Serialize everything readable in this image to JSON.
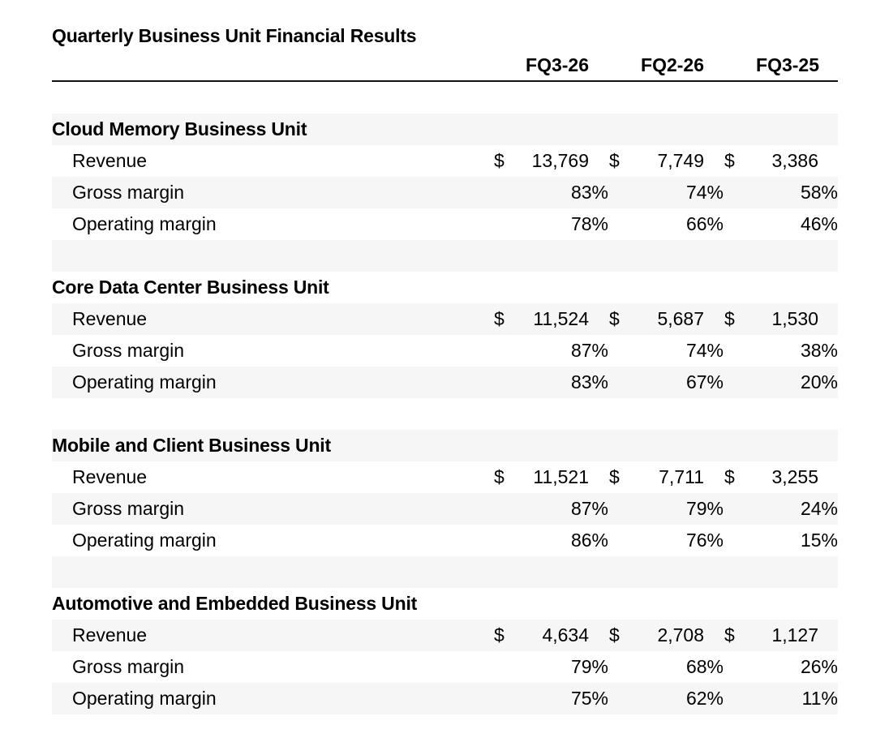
{
  "title": "Quarterly Business Unit Financial Results",
  "columns": [
    "FQ3-26",
    "FQ2-26",
    "FQ3-25"
  ],
  "currency_symbol": "$",
  "sections": [
    {
      "name": "Cloud Memory Business Unit",
      "rows": [
        {
          "label": "Revenue",
          "values": [
            "13,769",
            "7,749",
            "3,386"
          ]
        },
        {
          "label": "Gross margin",
          "values": [
            "83%",
            "74%",
            "58%"
          ]
        },
        {
          "label": "Operating margin",
          "values": [
            "78%",
            "66%",
            "46%"
          ]
        }
      ]
    },
    {
      "name": "Core Data Center Business Unit",
      "rows": [
        {
          "label": "Revenue",
          "values": [
            "11,524",
            "5,687",
            "1,530"
          ]
        },
        {
          "label": "Gross margin",
          "values": [
            "87%",
            "74%",
            "38%"
          ]
        },
        {
          "label": "Operating margin",
          "values": [
            "83%",
            "67%",
            "20%"
          ]
        }
      ]
    },
    {
      "name": "Mobile and Client Business Unit",
      "rows": [
        {
          "label": "Revenue",
          "values": [
            "11,521",
            "7,711",
            "3,255"
          ]
        },
        {
          "label": "Gross margin",
          "values": [
            "87%",
            "79%",
            "24%"
          ]
        },
        {
          "label": "Operating margin",
          "values": [
            "86%",
            "76%",
            "15%"
          ]
        }
      ]
    },
    {
      "name": "Automotive and Embedded Business Unit",
      "rows": [
        {
          "label": "Revenue",
          "values": [
            "4,634",
            "2,708",
            "1,127"
          ]
        },
        {
          "label": "Gross margin",
          "values": [
            "79%",
            "68%",
            "26%"
          ]
        },
        {
          "label": "Operating margin",
          "values": [
            "75%",
            "62%",
            "11%"
          ]
        }
      ]
    }
  ]
}
